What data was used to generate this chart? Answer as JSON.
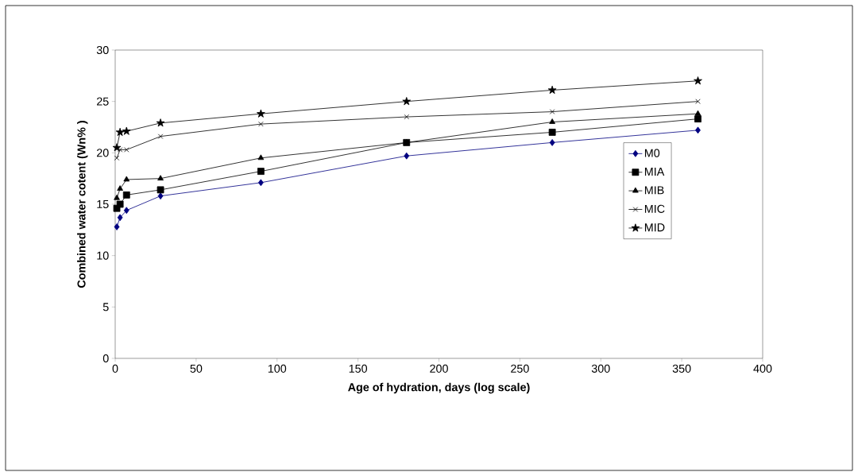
{
  "chart_data": {
    "type": "line",
    "xlabel": "Age of hydration, days (log scale)",
    "ylabel": "Combined water cotent (Wn% )",
    "x": [
      1,
      3,
      7,
      28,
      90,
      180,
      270,
      360
    ],
    "series": [
      {
        "name": "M0",
        "color": "#000080",
        "marker": "diamond",
        "values": [
          12.8,
          13.7,
          14.4,
          15.8,
          17.1,
          19.7,
          21.0,
          22.2
        ]
      },
      {
        "name": "MIA",
        "color": "#000000",
        "marker": "square",
        "values": [
          14.6,
          15.0,
          15.9,
          16.4,
          18.2,
          21.0,
          22.0,
          23.3
        ]
      },
      {
        "name": "MIB",
        "color": "#000000",
        "marker": "triangle",
        "values": [
          15.6,
          16.5,
          17.4,
          17.5,
          19.5,
          21.0,
          23.0,
          23.8
        ]
      },
      {
        "name": "MIC",
        "color": "#000000",
        "marker": "cross",
        "values": [
          19.5,
          20.3,
          20.3,
          21.6,
          22.8,
          23.5,
          24.0,
          25.0
        ]
      },
      {
        "name": "MID",
        "color": "#000000",
        "marker": "star",
        "values": [
          20.5,
          22.0,
          22.1,
          22.9,
          23.8,
          25.0,
          26.1,
          27.0
        ]
      }
    ],
    "xlim": [
      0,
      400
    ],
    "xticks": [
      0,
      50,
      100,
      150,
      200,
      250,
      300,
      350,
      400
    ],
    "ylim": [
      0,
      30
    ],
    "yticks": [
      0,
      5,
      10,
      15,
      20,
      25,
      30
    ],
    "grid": false,
    "legend": "right",
    "line_style": "solid"
  }
}
